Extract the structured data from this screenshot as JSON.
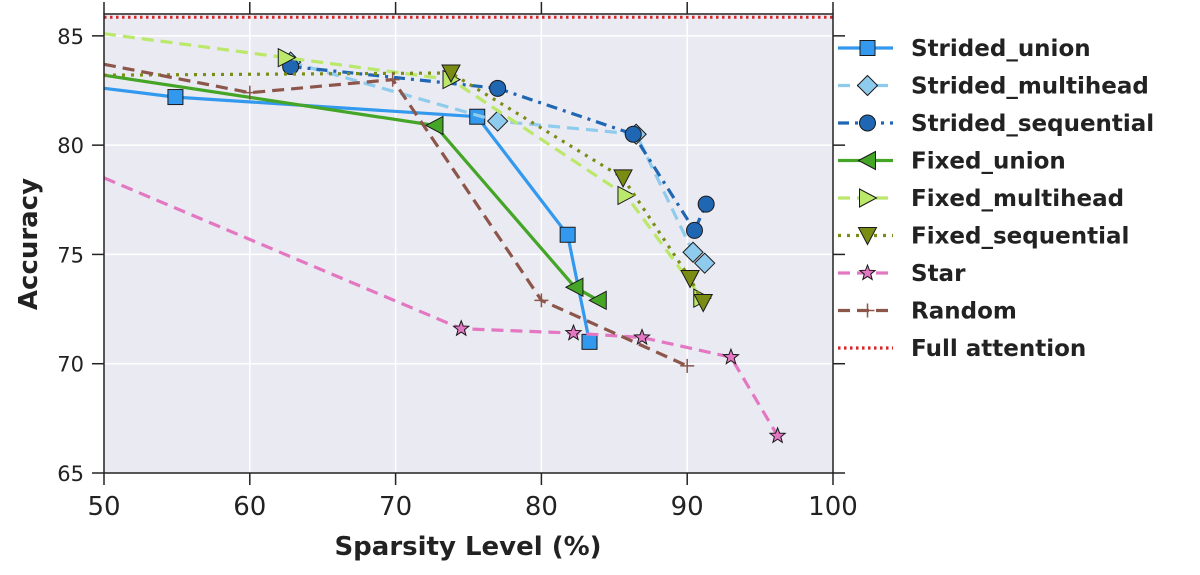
{
  "chart_data": {
    "type": "line",
    "title": "",
    "xlabel": "Sparsity Level (%)",
    "ylabel": "Accuracy",
    "xlim": [
      50,
      100
    ],
    "ylim": [
      65,
      86
    ],
    "xticks": [
      50,
      60,
      70,
      80,
      90,
      100
    ],
    "yticks": [
      65,
      70,
      75,
      80,
      85
    ],
    "grid": true,
    "legend_position": "outside-right",
    "reference_line": {
      "name": "Full attention",
      "y": 85.85,
      "color": "#d62728"
    },
    "series": [
      {
        "name": "Strided_union",
        "color": "#3399ee",
        "dash": "solid",
        "marker": "square",
        "x": [
          50,
          54.9,
          75.6,
          81.8,
          83.3
        ],
        "y": [
          82.6,
          82.2,
          81.3,
          75.9,
          71.0
        ]
      },
      {
        "name": "Strided_multihead",
        "color": "#8fcbec",
        "dash": "dashed",
        "marker": "diamond",
        "x": [
          62.8,
          77.0,
          86.5,
          90.4,
          91.2
        ],
        "y": [
          83.8,
          81.1,
          80.5,
          75.1,
          74.6
        ]
      },
      {
        "name": "Strided_sequential",
        "color": "#1f66b3",
        "dash": "dashdot",
        "marker": "circle",
        "x": [
          62.8,
          77.0,
          86.3,
          90.5,
          91.3
        ],
        "y": [
          83.6,
          82.6,
          80.5,
          76.1,
          77.3
        ]
      },
      {
        "name": "Fixed_union",
        "color": "#44a526",
        "dash": "solid",
        "marker": "triangle-left",
        "x": [
          50,
          72.7,
          82.3,
          83.9
        ],
        "y": [
          83.2,
          80.9,
          73.5,
          72.9
        ]
      },
      {
        "name": "Fixed_multihead",
        "color": "#bbe86a",
        "dash": "dashed",
        "marker": "triangle-right",
        "x": [
          50,
          62.5,
          73.8,
          85.8,
          91.0
        ],
        "y": [
          85.1,
          84.0,
          83.0,
          77.7,
          73.0
        ]
      },
      {
        "name": "Fixed_sequential",
        "color": "#7a8c14",
        "dash": "dotted",
        "marker": "triangle-down",
        "x": [
          50,
          73.8,
          85.6,
          90.2,
          91.1
        ],
        "y": [
          83.2,
          83.3,
          78.5,
          73.9,
          72.8
        ]
      },
      {
        "name": "Star",
        "color": "#e377c2",
        "dash": "dashed",
        "marker": "star",
        "x": [
          50,
          74.5,
          82.2,
          86.9,
          93.0,
          96.2
        ],
        "y": [
          78.5,
          71.6,
          71.4,
          71.2,
          70.3,
          66.7
        ]
      },
      {
        "name": "Random",
        "color": "#8c564b",
        "dash": "dashed",
        "marker": "plus",
        "x": [
          50,
          60,
          69.8,
          80.0,
          90.0
        ],
        "y": [
          83.7,
          82.4,
          83.0,
          72.9,
          69.9
        ]
      }
    ],
    "legend_entries": [
      "Strided_union",
      "Strided_multihead",
      "Strided_sequential",
      "Fixed_union",
      "Fixed_multihead",
      "Fixed_sequential",
      "Star",
      "Random",
      "Full attention"
    ]
  }
}
